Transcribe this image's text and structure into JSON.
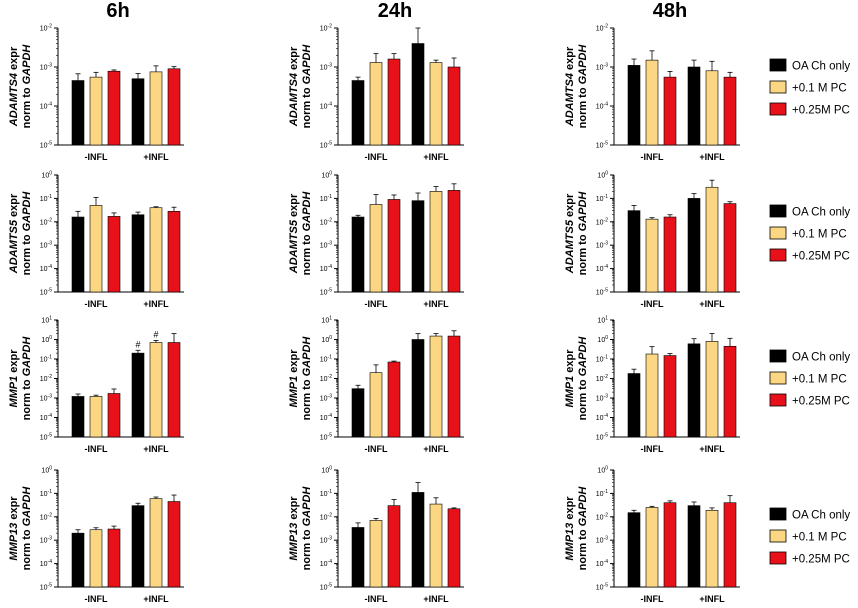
{
  "colors": {
    "oa_ch_only": "#000000",
    "pc_0_1": "#fbd783",
    "pc_0_25": "#e8111a",
    "axis": "#000000"
  },
  "column_titles": [
    "6h",
    "24h",
    "48h"
  ],
  "legend_items": [
    "OA Ch only",
    "+0.1 M PC",
    "+0.25M PC"
  ],
  "chart_data": [
    {
      "row": 0,
      "col": 0,
      "type": "bar",
      "title": "6h",
      "ylabel_gene": "ADAMTS4",
      "ylabel_rest": " expr",
      "ylabel_line2_prefix": "norm to ",
      "ylabel_line2_gene": "GAPDH",
      "yscale": "log",
      "ylim_exp": [
        -5,
        -2
      ],
      "y_ticks": [
        {
          "mant": "10",
          "exp": "-2"
        },
        {
          "mant": "10",
          "exp": "-3"
        },
        {
          "mant": "10",
          "exp": "-4"
        },
        {
          "mant": "10",
          "exp": "-5"
        }
      ],
      "categories": [
        "-INFL",
        "+INFL"
      ],
      "series": [
        {
          "name": "OA Ch only",
          "values": [
            0.00045,
            0.0005
          ],
          "errors": [
            0.00022,
            0.00018
          ]
        },
        {
          "name": "+0.1 M PC",
          "values": [
            0.00055,
            0.00075
          ],
          "errors": [
            0.00018,
            0.00032
          ]
        },
        {
          "name": "+0.25M PC",
          "values": [
            0.00078,
            0.0009
          ],
          "errors": [
            6e-05,
            0.00012
          ]
        }
      ]
    },
    {
      "row": 0,
      "col": 1,
      "type": "bar",
      "title": "24h",
      "ylabel_gene": "ADAMTS4",
      "ylabel_rest": " expr",
      "ylabel_line2_prefix": "norm to ",
      "ylabel_line2_gene": "GAPDH",
      "yscale": "log",
      "ylim_exp": [
        -5,
        -2
      ],
      "y_ticks": [
        {
          "mant": "10",
          "exp": "-2"
        },
        {
          "mant": "10",
          "exp": "-3"
        },
        {
          "mant": "10",
          "exp": "-4"
        },
        {
          "mant": "10",
          "exp": "-5"
        }
      ],
      "categories": [
        "-INFL",
        "+INFL"
      ],
      "series": [
        {
          "name": "OA Ch only",
          "values": [
            0.00045,
            0.004
          ],
          "errors": [
            0.0001,
            0.006
          ]
        },
        {
          "name": "+0.1 M PC",
          "values": [
            0.0013,
            0.0013
          ],
          "errors": [
            0.0009,
            0.0002
          ]
        },
        {
          "name": "+0.25M PC",
          "values": [
            0.0016,
            0.001
          ],
          "errors": [
            0.0006,
            0.0007
          ]
        }
      ]
    },
    {
      "row": 0,
      "col": 2,
      "type": "bar",
      "title": "48h",
      "ylabel_gene": "ADAMTS4",
      "ylabel_rest": " expr",
      "ylabel_line2_prefix": "norm to ",
      "ylabel_line2_gene": "GAPDH",
      "yscale": "log",
      "ylim_exp": [
        -5,
        -2
      ],
      "y_ticks": [
        {
          "mant": "10",
          "exp": "-2"
        },
        {
          "mant": "10",
          "exp": "-3"
        },
        {
          "mant": "10",
          "exp": "-4"
        },
        {
          "mant": "10",
          "exp": "-5"
        }
      ],
      "categories": [
        "-INFL",
        "+INFL"
      ],
      "series": [
        {
          "name": "OA Ch only",
          "values": [
            0.0011,
            0.001
          ],
          "errors": [
            0.0005,
            0.0005
          ]
        },
        {
          "name": "+0.1 M PC",
          "values": [
            0.0015,
            0.0008
          ],
          "errors": [
            0.0011,
            0.0006
          ]
        },
        {
          "name": "+0.25M PC",
          "values": [
            0.00055,
            0.00055
          ],
          "errors": [
            0.00022,
            0.00018
          ]
        }
      ]
    },
    {
      "row": 1,
      "col": 0,
      "type": "bar",
      "title": "6h",
      "ylabel_gene": "ADAMTS5",
      "ylabel_rest": " expr",
      "ylabel_line2_prefix": "norm to ",
      "ylabel_line2_gene": "GAPDH",
      "yscale": "log",
      "ylim_exp": [
        -5,
        0
      ],
      "y_ticks": [
        {
          "mant": "10",
          "exp": "0"
        },
        {
          "mant": "10",
          "exp": "-1"
        },
        {
          "mant": "10",
          "exp": "-2"
        },
        {
          "mant": "10",
          "exp": "-3"
        },
        {
          "mant": "10",
          "exp": "-4"
        },
        {
          "mant": "10",
          "exp": "-5"
        }
      ],
      "categories": [
        "-INFL",
        "+INFL"
      ],
      "series": [
        {
          "name": "OA Ch only",
          "values": [
            0.016,
            0.02
          ],
          "errors": [
            0.012,
            0.006
          ]
        },
        {
          "name": "+0.1 M PC",
          "values": [
            0.05,
            0.04
          ],
          "errors": [
            0.06,
            0.004
          ]
        },
        {
          "name": "+0.25M PC",
          "values": [
            0.017,
            0.028
          ],
          "errors": [
            0.007,
            0.014
          ]
        }
      ]
    },
    {
      "row": 1,
      "col": 1,
      "type": "bar",
      "title": "24h",
      "ylabel_gene": "ADAMTS5",
      "ylabel_rest": " expr",
      "ylabel_line2_prefix": "norm to ",
      "ylabel_line2_gene": "GAPDH",
      "yscale": "log",
      "ylim_exp": [
        -5,
        0
      ],
      "y_ticks": [
        {
          "mant": "10",
          "exp": "0"
        },
        {
          "mant": "10",
          "exp": "-1"
        },
        {
          "mant": "10",
          "exp": "-2"
        },
        {
          "mant": "10",
          "exp": "-3"
        },
        {
          "mant": "10",
          "exp": "-4"
        },
        {
          "mant": "10",
          "exp": "-5"
        }
      ],
      "categories": [
        "-INFL",
        "+INFL"
      ],
      "series": [
        {
          "name": "OA Ch only",
          "values": [
            0.016,
            0.08
          ],
          "errors": [
            0.003,
            0.09
          ]
        },
        {
          "name": "+0.1 M PC",
          "values": [
            0.055,
            0.2
          ],
          "errors": [
            0.09,
            0.12
          ]
        },
        {
          "name": "+0.25M PC",
          "values": [
            0.09,
            0.22
          ],
          "errors": [
            0.05,
            0.2
          ]
        }
      ]
    },
    {
      "row": 1,
      "col": 2,
      "type": "bar",
      "title": "48h",
      "ylabel_gene": "ADAMTS5",
      "ylabel_rest": " expr",
      "ylabel_line2_prefix": "norm to ",
      "ylabel_line2_gene": "GAPDH",
      "yscale": "log",
      "ylim_exp": [
        -5,
        0
      ],
      "y_ticks": [
        {
          "mant": "10",
          "exp": "0"
        },
        {
          "mant": "10",
          "exp": "-1"
        },
        {
          "mant": "10",
          "exp": "-2"
        },
        {
          "mant": "10",
          "exp": "-3"
        },
        {
          "mant": "10",
          "exp": "-4"
        },
        {
          "mant": "10",
          "exp": "-5"
        }
      ],
      "categories": [
        "-INFL",
        "+INFL"
      ],
      "series": [
        {
          "name": "OA Ch only",
          "values": [
            0.03,
            0.1
          ],
          "errors": [
            0.02,
            0.06
          ]
        },
        {
          "name": "+0.1 M PC",
          "values": [
            0.013,
            0.3
          ],
          "errors": [
            0.002,
            0.3
          ]
        },
        {
          "name": "+0.25M PC",
          "values": [
            0.016,
            0.06
          ],
          "errors": [
            0.004,
            0.012
          ]
        }
      ]
    },
    {
      "row": 2,
      "col": 0,
      "type": "bar",
      "title": "6h",
      "ylabel_gene": "MMP1",
      "ylabel_rest": " expr",
      "ylabel_line2_prefix": "norm to ",
      "ylabel_line2_gene": "GAPDH",
      "yscale": "log",
      "ylim_exp": [
        -5,
        1
      ],
      "y_ticks": [
        {
          "mant": "10",
          "exp": "1"
        },
        {
          "mant": "10",
          "exp": "0"
        },
        {
          "mant": "10",
          "exp": "-1"
        },
        {
          "mant": "10",
          "exp": "-2"
        },
        {
          "mant": "10",
          "exp": "-3"
        },
        {
          "mant": "10",
          "exp": "-4"
        },
        {
          "mant": "10",
          "exp": "-5"
        }
      ],
      "categories": [
        "-INFL",
        "+INFL"
      ],
      "series": [
        {
          "name": "OA Ch only",
          "values": [
            0.0012,
            0.2
          ],
          "errors": [
            0.0004,
            0.08
          ]
        },
        {
          "name": "+0.1 M PC",
          "values": [
            0.0012,
            0.7
          ],
          "errors": [
            0.0002,
            0.2
          ]
        },
        {
          "name": "+0.25M PC",
          "values": [
            0.0017,
            0.7
          ],
          "errors": [
            0.0012,
            1.3
          ]
        }
      ],
      "annotations": [
        {
          "category": "+INFL",
          "series": "OA Ch only",
          "text": "#"
        },
        {
          "category": "+INFL",
          "series": "+0.1 M PC",
          "text": "#"
        }
      ]
    },
    {
      "row": 2,
      "col": 1,
      "type": "bar",
      "title": "24h",
      "ylabel_gene": "MMP1",
      "ylabel_rest": " expr",
      "ylabel_line2_prefix": "norm to ",
      "ylabel_line2_gene": "GAPDH",
      "yscale": "log",
      "ylim_exp": [
        -5,
        1
      ],
      "y_ticks": [
        {
          "mant": "10",
          "exp": "1"
        },
        {
          "mant": "10",
          "exp": "0"
        },
        {
          "mant": "10",
          "exp": "-1"
        },
        {
          "mant": "10",
          "exp": "-2"
        },
        {
          "mant": "10",
          "exp": "-3"
        },
        {
          "mant": "10",
          "exp": "-4"
        },
        {
          "mant": "10",
          "exp": "-5"
        }
      ],
      "categories": [
        "-INFL",
        "+INFL"
      ],
      "series": [
        {
          "name": "OA Ch only",
          "values": [
            0.003,
            1.0
          ],
          "errors": [
            0.0015,
            1.0
          ]
        },
        {
          "name": "+0.1 M PC",
          "values": [
            0.02,
            1.5
          ],
          "errors": [
            0.03,
            0.5
          ]
        },
        {
          "name": "+0.25M PC",
          "values": [
            0.07,
            1.5
          ],
          "errors": [
            0.008,
            1.3
          ]
        }
      ]
    },
    {
      "row": 2,
      "col": 2,
      "type": "bar",
      "title": "48h",
      "ylabel_gene": "MMP1",
      "ylabel_rest": " expr",
      "ylabel_line2_prefix": "norm to ",
      "ylabel_line2_gene": "GAPDH",
      "yscale": "log",
      "ylim_exp": [
        -5,
        1
      ],
      "y_ticks": [
        {
          "mant": "10",
          "exp": "1"
        },
        {
          "mant": "10",
          "exp": "0"
        },
        {
          "mant": "10",
          "exp": "-1"
        },
        {
          "mant": "10",
          "exp": "-2"
        },
        {
          "mant": "10",
          "exp": "-3"
        },
        {
          "mant": "10",
          "exp": "-4"
        },
        {
          "mant": "10",
          "exp": "-5"
        }
      ],
      "categories": [
        "-INFL",
        "+INFL"
      ],
      "series": [
        {
          "name": "OA Ch only",
          "values": [
            0.018,
            0.6
          ],
          "errors": [
            0.012,
            0.5
          ]
        },
        {
          "name": "+0.1 M PC",
          "values": [
            0.18,
            0.8
          ],
          "errors": [
            0.25,
            1.2
          ]
        },
        {
          "name": "+0.25M PC",
          "values": [
            0.15,
            0.45
          ],
          "errors": [
            0.04,
            0.7
          ]
        }
      ]
    },
    {
      "row": 3,
      "col": 0,
      "type": "bar",
      "title": "6h",
      "ylabel_gene": "MMP13",
      "ylabel_rest": " expr",
      "ylabel_line2_prefix": "norm to ",
      "ylabel_line2_gene": "GAPDH",
      "yscale": "log",
      "ylim_exp": [
        -5,
        0
      ],
      "y_ticks": [
        {
          "mant": "10",
          "exp": "0"
        },
        {
          "mant": "10",
          "exp": "-1"
        },
        {
          "mant": "10",
          "exp": "-2"
        },
        {
          "mant": "10",
          "exp": "-3"
        },
        {
          "mant": "10",
          "exp": "-4"
        },
        {
          "mant": "10",
          "exp": "-5"
        }
      ],
      "categories": [
        "-INFL",
        "+INFL"
      ],
      "series": [
        {
          "name": "OA Ch only",
          "values": [
            0.002,
            0.03
          ],
          "errors": [
            0.0008,
            0.008
          ]
        },
        {
          "name": "+0.1 M PC",
          "values": [
            0.0028,
            0.06
          ],
          "errors": [
            0.0006,
            0.01
          ]
        },
        {
          "name": "+0.25M PC",
          "values": [
            0.003,
            0.045
          ],
          "errors": [
            0.001,
            0.04
          ]
        }
      ]
    },
    {
      "row": 3,
      "col": 1,
      "type": "bar",
      "title": "24h",
      "ylabel_gene": "MMP13",
      "ylabel_rest": " expr",
      "ylabel_line2_prefix": "norm to ",
      "ylabel_line2_gene": "GAPDH",
      "yscale": "log",
      "ylim_exp": [
        -5,
        0
      ],
      "y_ticks": [
        {
          "mant": "10",
          "exp": "0"
        },
        {
          "mant": "10",
          "exp": "-1"
        },
        {
          "mant": "10",
          "exp": "-2"
        },
        {
          "mant": "10",
          "exp": "-3"
        },
        {
          "mant": "10",
          "exp": "-4"
        },
        {
          "mant": "10",
          "exp": "-5"
        }
      ],
      "categories": [
        "-INFL",
        "+INFL"
      ],
      "series": [
        {
          "name": "OA Ch only",
          "values": [
            0.0035,
            0.11
          ],
          "errors": [
            0.002,
            0.18
          ]
        },
        {
          "name": "+0.1 M PC",
          "values": [
            0.007,
            0.035
          ],
          "errors": [
            0.0015,
            0.03
          ]
        },
        {
          "name": "+0.25M PC",
          "values": [
            0.03,
            0.022
          ],
          "errors": [
            0.025,
            0.002
          ]
        }
      ]
    },
    {
      "row": 3,
      "col": 2,
      "type": "bar",
      "title": "48h",
      "ylabel_gene": "MMP13",
      "ylabel_rest": " expr",
      "ylabel_line2_prefix": "norm to ",
      "ylabel_line2_gene": "GAPDH",
      "yscale": "log",
      "ylim_exp": [
        -5,
        0
      ],
      "y_ticks": [
        {
          "mant": "10",
          "exp": "0"
        },
        {
          "mant": "10",
          "exp": "-1"
        },
        {
          "mant": "10",
          "exp": "-2"
        },
        {
          "mant": "10",
          "exp": "-3"
        },
        {
          "mant": "10",
          "exp": "-4"
        },
        {
          "mant": "10",
          "exp": "-5"
        }
      ],
      "categories": [
        "-INFL",
        "+INFL"
      ],
      "series": [
        {
          "name": "OA Ch only",
          "values": [
            0.015,
            0.03
          ],
          "errors": [
            0.004,
            0.013
          ]
        },
        {
          "name": "+0.1 M PC",
          "values": [
            0.025,
            0.019
          ],
          "errors": [
            0.003,
            0.005
          ]
        },
        {
          "name": "+0.25M PC",
          "values": [
            0.04,
            0.04
          ],
          "errors": [
            0.008,
            0.04
          ]
        }
      ]
    }
  ]
}
